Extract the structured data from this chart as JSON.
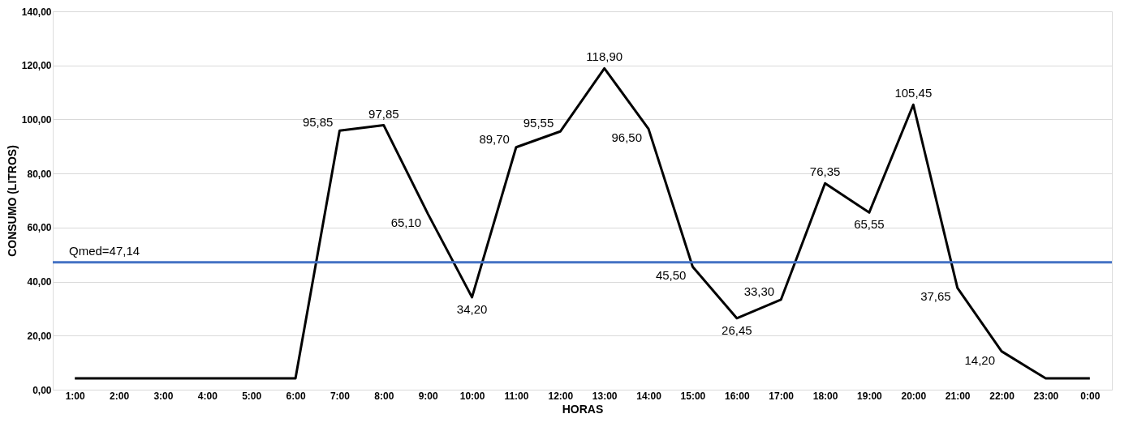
{
  "chart_data": {
    "type": "line",
    "xlabel": "HORAS",
    "ylabel": "CONSUMO (LITROS)",
    "categories": [
      "1:00",
      "2:00",
      "3:00",
      "4:00",
      "5:00",
      "6:00",
      "7:00",
      "8:00",
      "9:00",
      "10:00",
      "11:00",
      "12:00",
      "13:00",
      "14:00",
      "15:00",
      "16:00",
      "17:00",
      "18:00",
      "19:00",
      "20:00",
      "21:00",
      "22:00",
      "23:00",
      "0:00"
    ],
    "series": [
      {
        "color": "#000000",
        "values": [
          4.2,
          4.2,
          4.2,
          4.2,
          4.2,
          4.2,
          95.85,
          97.85,
          65.1,
          34.2,
          89.7,
          95.55,
          118.9,
          96.5,
          45.5,
          26.45,
          33.3,
          76.35,
          65.55,
          105.45,
          37.65,
          14.2,
          4.2,
          4.2
        ],
        "value_labels": [
          null,
          null,
          null,
          null,
          null,
          null,
          "95,85",
          "97,85",
          "65,10",
          "34,20",
          "89,70",
          "95,55",
          "118,90",
          "96,50",
          "45,50",
          "26,45",
          "33,30",
          "76,35",
          "65,55",
          "105,45",
          "37,65",
          "14,20",
          null,
          null
        ]
      }
    ],
    "ylim": [
      0,
      140
    ],
    "yticks": [
      {
        "value": 0,
        "label": "0,00"
      },
      {
        "value": 20,
        "label": "20,00"
      },
      {
        "value": 40,
        "label": "40,00"
      },
      {
        "value": 60,
        "label": "60,00"
      },
      {
        "value": 80,
        "label": "80,00"
      },
      {
        "value": 100,
        "label": "100,00"
      },
      {
        "value": 120,
        "label": "120,00"
      },
      {
        "value": 140,
        "label": "140,00"
      }
    ],
    "ref_lines": [
      {
        "axis": "y",
        "value": 47.14,
        "label": "Qmed=47,14",
        "color": "#4472c4"
      }
    ],
    "grid": "y",
    "marker": "none",
    "line_style": "solid"
  }
}
